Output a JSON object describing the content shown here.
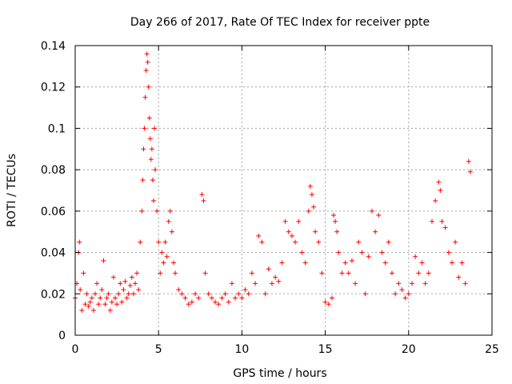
{
  "chart_data": {
    "type": "scatter",
    "title": "Day 266 of 2017, Rate Of TEC Index for receiver ppte",
    "xlabel": "GPS time / hours",
    "ylabel": "ROTI / TECUs",
    "xlim": [
      0,
      25
    ],
    "ylim": [
      0,
      0.14
    ],
    "x_ticks": [
      0,
      5,
      10,
      15,
      20,
      25
    ],
    "x_tick_labels": [
      "0",
      "5",
      "10",
      "15",
      "20",
      "25"
    ],
    "y_ticks": [
      0,
      0.02,
      0.04,
      0.06,
      0.08,
      0.1,
      0.12,
      0.14
    ],
    "y_tick_labels": [
      "0",
      "0.02",
      "0.04",
      "0.06",
      "0.08",
      "0.1",
      "0.12",
      "0.14"
    ],
    "grid": true,
    "marker": "plus",
    "color": "#ff0000",
    "series": [
      {
        "x": [
          0.0,
          0.1,
          0.2,
          0.25,
          0.3,
          0.4,
          0.5,
          0.6,
          0.7,
          0.8,
          0.9,
          1.0,
          1.1,
          1.2,
          1.3,
          1.4,
          1.5,
          1.6,
          1.7,
          1.8,
          1.9,
          2.0,
          2.1,
          2.2,
          2.3,
          2.4,
          2.5,
          2.6,
          2.7,
          2.8,
          2.9,
          3.0,
          3.1,
          3.2,
          3.3,
          3.4,
          3.5,
          3.6,
          3.7,
          3.8,
          3.9,
          4.0,
          4.05,
          4.1,
          4.15,
          4.2,
          4.25,
          4.3,
          4.35,
          4.4,
          4.45,
          4.5,
          4.55,
          4.6,
          4.65,
          4.7,
          4.75,
          4.8,
          4.9,
          5.0,
          5.1,
          5.2,
          5.3,
          5.4,
          5.5,
          5.6,
          5.7,
          5.8,
          5.9,
          6.0,
          6.2,
          6.4,
          6.6,
          6.8,
          7.0,
          7.2,
          7.4,
          7.6,
          7.7,
          7.8,
          8.0,
          8.2,
          8.4,
          8.6,
          8.8,
          9.0,
          9.2,
          9.4,
          9.6,
          9.8,
          10.0,
          10.2,
          10.4,
          10.6,
          10.8,
          11.0,
          11.2,
          11.4,
          11.6,
          11.8,
          12.0,
          12.2,
          12.4,
          12.6,
          12.8,
          13.0,
          13.2,
          13.4,
          13.6,
          13.8,
          14.0,
          14.1,
          14.2,
          14.3,
          14.4,
          14.6,
          14.8,
          15.0,
          15.2,
          15.4,
          15.5,
          15.6,
          15.7,
          15.8,
          16.0,
          16.2,
          16.4,
          16.6,
          16.8,
          17.0,
          17.2,
          17.4,
          17.6,
          17.8,
          18.0,
          18.2,
          18.4,
          18.6,
          18.8,
          19.0,
          19.2,
          19.4,
          19.6,
          19.8,
          20.0,
          20.2,
          20.4,
          20.6,
          20.8,
          21.0,
          21.2,
          21.4,
          21.6,
          21.8,
          21.9,
          22.0,
          22.2,
          22.4,
          22.6,
          22.8,
          23.0,
          23.2,
          23.4,
          23.6,
          23.7
        ],
        "y": [
          0.018,
          0.025,
          0.04,
          0.045,
          0.022,
          0.012,
          0.03,
          0.015,
          0.02,
          0.014,
          0.016,
          0.018,
          0.012,
          0.02,
          0.025,
          0.015,
          0.018,
          0.022,
          0.036,
          0.015,
          0.018,
          0.02,
          0.012,
          0.016,
          0.028,
          0.018,
          0.015,
          0.02,
          0.025,
          0.016,
          0.022,
          0.026,
          0.018,
          0.02,
          0.024,
          0.028,
          0.02,
          0.025,
          0.03,
          0.022,
          0.045,
          0.06,
          0.075,
          0.09,
          0.1,
          0.115,
          0.128,
          0.136,
          0.132,
          0.12,
          0.105,
          0.095,
          0.085,
          0.09,
          0.075,
          0.065,
          0.1,
          0.08,
          0.06,
          0.045,
          0.03,
          0.04,
          0.035,
          0.045,
          0.038,
          0.055,
          0.06,
          0.05,
          0.035,
          0.03,
          0.022,
          0.02,
          0.018,
          0.015,
          0.016,
          0.02,
          0.018,
          0.068,
          0.065,
          0.03,
          0.02,
          0.018,
          0.016,
          0.015,
          0.018,
          0.02,
          0.016,
          0.025,
          0.018,
          0.02,
          0.018,
          0.022,
          0.02,
          0.03,
          0.025,
          0.048,
          0.045,
          0.02,
          0.032,
          0.025,
          0.028,
          0.026,
          0.035,
          0.055,
          0.05,
          0.048,
          0.045,
          0.055,
          0.04,
          0.035,
          0.06,
          0.072,
          0.068,
          0.062,
          0.05,
          0.045,
          0.03,
          0.016,
          0.015,
          0.018,
          0.058,
          0.055,
          0.05,
          0.04,
          0.03,
          0.035,
          0.03,
          0.036,
          0.025,
          0.045,
          0.04,
          0.02,
          0.038,
          0.06,
          0.05,
          0.058,
          0.04,
          0.035,
          0.045,
          0.03,
          0.02,
          0.025,
          0.022,
          0.018,
          0.02,
          0.025,
          0.038,
          0.03,
          0.035,
          0.025,
          0.03,
          0.055,
          0.065,
          0.074,
          0.07,
          0.055,
          0.052,
          0.04,
          0.035,
          0.045,
          0.028,
          0.035,
          0.025,
          0.084,
          0.079
        ]
      }
    ]
  }
}
